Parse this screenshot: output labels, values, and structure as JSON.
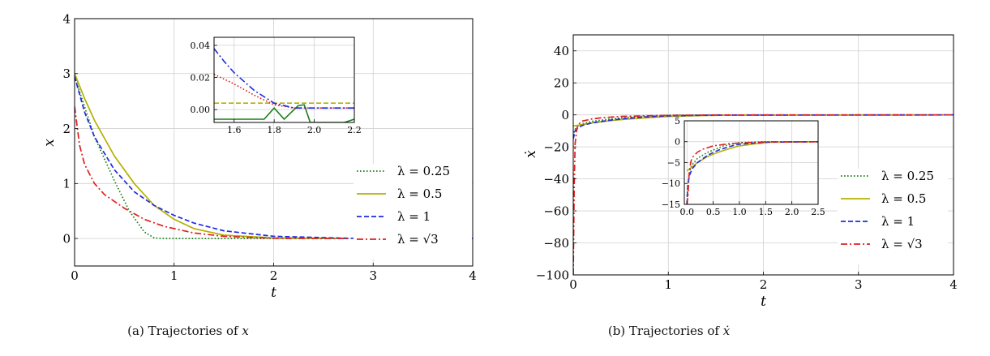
{
  "chart_data": [
    {
      "type": "line",
      "panel": "a",
      "caption": "(a) Trajectories of x",
      "caption_prefix": "(a) Trajectories of ",
      "caption_var": "x",
      "xlabel": "t",
      "ylabel": "x",
      "xlim": [
        0,
        4
      ],
      "ylim": [
        -0.5,
        4
      ],
      "xticks": [
        0,
        1,
        2,
        3,
        4
      ],
      "yticks": [
        0,
        1,
        2,
        3,
        4
      ],
      "grid": true,
      "legend_position": "right",
      "series": [
        {
          "name": "λ = 0.25",
          "color": "#1a7f1a",
          "dash": "dotted",
          "x": [
            0,
            0.2,
            0.4,
            0.55,
            0.7,
            0.8,
            0.9,
            1.0,
            1.5,
            2,
            2.75
          ],
          "y": [
            2.95,
            1.85,
            1.05,
            0.5,
            0.12,
            0.01,
            0,
            0,
            0,
            0,
            0
          ]
        },
        {
          "name": "λ = 0.5",
          "color": "#b5b000",
          "dash": "solid",
          "x": [
            0,
            0.1,
            0.2,
            0.4,
            0.6,
            0.8,
            1.0,
            1.2,
            1.5,
            2.0,
            2.75
          ],
          "y": [
            3.0,
            2.55,
            2.15,
            1.5,
            1.0,
            0.6,
            0.35,
            0.18,
            0.06,
            0.01,
            0
          ]
        },
        {
          "name": "λ = 1",
          "color": "#1f2be0",
          "dash": "dashed",
          "x": [
            0,
            0.1,
            0.2,
            0.4,
            0.6,
            0.8,
            1.0,
            1.2,
            1.5,
            2.0,
            2.75,
            3.5,
            4.0
          ],
          "y": [
            2.95,
            2.3,
            1.85,
            1.25,
            0.85,
            0.6,
            0.42,
            0.28,
            0.14,
            0.04,
            0.005,
            0,
            0
          ]
        },
        {
          "name": "λ = √3",
          "color": "#e02020",
          "dash": "dashdot",
          "x": [
            0,
            0.05,
            0.1,
            0.2,
            0.3,
            0.5,
            0.7,
            0.9,
            1.2,
            1.5,
            2.0,
            2.75
          ],
          "y": [
            2.4,
            1.7,
            1.35,
            1.0,
            0.8,
            0.55,
            0.35,
            0.22,
            0.1,
            0.04,
            0.005,
            0
          ]
        }
      ],
      "inset": {
        "xlim": [
          1.5,
          2.2
        ],
        "ylim": [
          -0.008,
          0.045
        ],
        "xticks": [
          1.6,
          1.8,
          2.0,
          2.2
        ],
        "yticks": [
          0.0,
          0.02,
          0.04
        ],
        "xtick_labels": [
          "1.6",
          "1.8",
          "2.0",
          "2.2"
        ],
        "ytick_labels": [
          "0.00",
          "0.02",
          "0.04"
        ],
        "grid": true,
        "series": [
          {
            "color": "#1a7f1a",
            "dash": "solid",
            "x": [
              1.5,
              1.75,
              1.8,
              1.85,
              1.92,
              1.95,
              1.98,
              2.15,
              2.2
            ],
            "y": [
              -0.006,
              -0.006,
              0.001,
              -0.006,
              0.0025,
              0.003,
              -0.008,
              -0.008,
              -0.006
            ]
          },
          {
            "color": "#b5b000",
            "dash": "dashed",
            "x": [
              1.5,
              2.2
            ],
            "y": [
              0.004,
              0.004
            ]
          },
          {
            "color": "#e02020",
            "dash": "dotted",
            "x": [
              1.5,
              1.6,
              1.7,
              1.8,
              1.9,
              2.0,
              2.2
            ],
            "y": [
              0.022,
              0.016,
              0.009,
              0.003,
              0.001,
              0.001,
              0.001
            ]
          },
          {
            "color": "#1f2be0",
            "dash": "dashdot",
            "x": [
              1.5,
              1.55,
              1.6,
              1.7,
              1.8,
              1.9,
              2.0,
              2.2
            ],
            "y": [
              0.038,
              0.03,
              0.023,
              0.012,
              0.004,
              0.001,
              0.001,
              0.001
            ]
          }
        ]
      }
    },
    {
      "type": "line",
      "panel": "b",
      "caption": "(b) Trajectories of ẋ",
      "caption_prefix": "(b) Trajectories of ",
      "caption_var": "ẋ",
      "xlabel": "t",
      "ylabel": "ẋ",
      "xlim": [
        0,
        4
      ],
      "ylim": [
        -100,
        50
      ],
      "xticks": [
        0,
        1,
        2,
        3,
        4
      ],
      "yticks": [
        -100,
        -80,
        -60,
        -40,
        -20,
        0,
        20,
        40
      ],
      "grid": true,
      "legend_position": "right",
      "series": [
        {
          "name": "λ = 0.25",
          "color": "#1a7f1a",
          "dash": "dotted",
          "x": [
            0,
            0.02,
            0.05,
            0.1,
            0.2,
            0.4,
            0.7,
            1.0,
            1.5,
            4.0
          ],
          "y": [
            -13,
            -9,
            -7,
            -5.5,
            -4,
            -2.5,
            -1,
            -0.2,
            0,
            0
          ]
        },
        {
          "name": "λ = 0.5",
          "color": "#b5b000",
          "dash": "solid",
          "x": [
            0,
            0.05,
            0.1,
            0.2,
            0.4,
            0.6,
            0.8,
            1.0,
            1.3,
            1.6,
            4.0
          ],
          "y": [
            -7,
            -6.5,
            -6,
            -5,
            -3.5,
            -2.5,
            -1.7,
            -1,
            -0.5,
            -0.15,
            0
          ]
        },
        {
          "name": "λ = 1",
          "color": "#1f2be0",
          "dash": "dashed",
          "x": [
            0,
            0.02,
            0.05,
            0.1,
            0.2,
            0.4,
            0.6,
            0.8,
            1.0,
            1.5,
            4.0
          ],
          "y": [
            -15,
            -10,
            -8,
            -6.5,
            -5,
            -3.2,
            -2,
            -1.2,
            -0.6,
            -0.1,
            0
          ]
        },
        {
          "name": "λ = √3",
          "color": "#e02020",
          "dash": "dashdot",
          "x": [
            0,
            0.01,
            0.02,
            0.04,
            0.07,
            0.1,
            0.2,
            0.3,
            0.5,
            0.8,
            1.0,
            1.5,
            4.0
          ],
          "y": [
            -100,
            -45,
            -18,
            -8,
            -5,
            -3.8,
            -2.5,
            -1.8,
            -1.0,
            -0.5,
            -0.3,
            -0.05,
            0
          ]
        }
      ],
      "inset": {
        "xlim": [
          -0.05,
          2.5
        ],
        "ylim": [
          -15,
          5
        ],
        "xticks": [
          0,
          0.5,
          1.0,
          1.5,
          2.0,
          2.5
        ],
        "yticks": [
          -15,
          -10,
          -5,
          0,
          5
        ],
        "xtick_labels": [
          "0.0",
          "0.5",
          "1.0",
          "1.5",
          "2.0",
          "2.5"
        ],
        "ytick_labels": [
          "−15",
          "−10",
          "−5",
          "0",
          "5"
        ],
        "grid": true,
        "series": [
          {
            "color": "#1a7f1a",
            "dash": "dotted",
            "x": [
              0,
              0.05,
              0.1,
              0.2,
              0.4,
              0.7,
              1.0,
              1.5,
              2.5
            ],
            "y": [
              -13,
              -7,
              -5.5,
              -4,
              -2.5,
              -1,
              -0.2,
              0,
              0
            ]
          },
          {
            "color": "#b5b000",
            "dash": "solid",
            "x": [
              0,
              0.05,
              0.1,
              0.2,
              0.4,
              0.6,
              0.8,
              1.0,
              1.3,
              1.6,
              2.5
            ],
            "y": [
              -7,
              -6.5,
              -6,
              -5,
              -3.5,
              -2.5,
              -1.7,
              -1,
              -0.5,
              -0.15,
              0
            ]
          },
          {
            "color": "#1f2be0",
            "dash": "dashed",
            "x": [
              0,
              0.02,
              0.05,
              0.1,
              0.2,
              0.4,
              0.6,
              0.8,
              1.0,
              1.5,
              2.5
            ],
            "y": [
              -15,
              -10,
              -8,
              -6.5,
              -5,
              -3.2,
              -2,
              -1.2,
              -0.6,
              -0.1,
              0
            ]
          },
          {
            "color": "#e02020",
            "dash": "dashdot",
            "x": [
              0,
              0.02,
              0.04,
              0.07,
              0.1,
              0.2,
              0.3,
              0.5,
              0.8,
              1.0,
              1.5,
              2.5
            ],
            "y": [
              -15,
              -13,
              -8,
              -5,
              -3.8,
              -2.5,
              -1.8,
              -1.0,
              -0.5,
              -0.3,
              -0.05,
              0
            ]
          }
        ]
      }
    }
  ]
}
